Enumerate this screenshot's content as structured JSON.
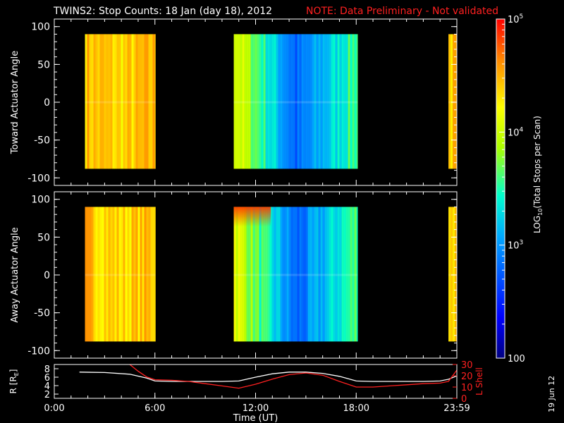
{
  "header": {
    "title": "TWINS2: Stop Counts: 18 Jan (day  18), 2012",
    "note": "NOTE: Data Preliminary - Not validated"
  },
  "side_date": "19 Jun 12",
  "colors": {
    "background": "#000000",
    "axes": "#ffffff",
    "note": "#ff2020",
    "r_line": "#ffffff",
    "lshell_line": "#ff2020"
  },
  "chart_data": [
    {
      "type": "heatmap",
      "ylabel": "Toward Actuator Angle",
      "ylim": [
        -110,
        110
      ],
      "yticks": [
        100,
        50,
        0,
        -50,
        -100
      ],
      "xlim_hours": [
        0,
        24
      ],
      "angle_range": [
        -88,
        90
      ],
      "blocks": [
        {
          "start_hour": 1.83,
          "end_hour": 6.03,
          "level_start": 0.82,
          "level_mid": 0.78,
          "level_end": 0.82
        },
        {
          "start_hour": 10.7,
          "end_hour": 18.08,
          "level_start": 0.72,
          "level_mid": 0.25,
          "level_end": 0.55
        },
        {
          "start_hour": 23.5,
          "end_hour": 24.0,
          "level_start": 0.8,
          "level_mid": 0.8,
          "level_end": 0.8
        }
      ]
    },
    {
      "type": "heatmap",
      "ylabel": "Away Actuator Angle",
      "ylim": [
        -110,
        110
      ],
      "yticks": [
        100,
        50,
        0,
        -50,
        -100
      ],
      "xlim_hours": [
        0,
        24
      ],
      "angle_range": [
        -88,
        90
      ],
      "blocks": [
        {
          "start_hour": 1.83,
          "end_hour": 6.03,
          "level_start": 0.82,
          "level_mid": 0.78,
          "level_end": 0.82
        },
        {
          "start_hour": 10.7,
          "end_hour": 18.08,
          "level_start": 0.72,
          "level_mid": 0.25,
          "level_end": 0.55
        },
        {
          "start_hour": 23.5,
          "end_hour": 24.0,
          "level_start": 0.8,
          "level_mid": 0.8,
          "level_end": 0.8
        }
      ]
    },
    {
      "type": "line",
      "xlabel": "Time (UT)",
      "xticks": [
        {
          "hour": 0,
          "label": "0:00"
        },
        {
          "hour": 6,
          "label": "6:00"
        },
        {
          "hour": 12,
          "label": "12:00"
        },
        {
          "hour": 18,
          "label": "18:00"
        },
        {
          "hour": 24,
          "label": "23:59"
        }
      ],
      "ylabel_left": "R [R",
      "ylabel_left_sub": "E",
      "ylabel_left_end": "]",
      "ylim_left": [
        1,
        9
      ],
      "yticks_left": [
        2,
        4,
        6,
        8
      ],
      "ylabel_right": "L Shell",
      "ylim_right": [
        0,
        30
      ],
      "yticks_right": [
        0,
        10,
        20,
        30
      ],
      "series": [
        {
          "axis": "left",
          "x": [
            1.5,
            3,
            4.5,
            5.5,
            6.0,
            7,
            8,
            9,
            10,
            11,
            12,
            13,
            14,
            15,
            16,
            17,
            18,
            19,
            20,
            21,
            22,
            23,
            23.5,
            24
          ],
          "y": [
            7.2,
            7.1,
            6.7,
            5.8,
            5.1,
            5.0,
            5.0,
            5.0,
            5.0,
            5.1,
            6.0,
            6.8,
            7.2,
            7.2,
            6.9,
            6.2,
            5.1,
            5.0,
            5.0,
            5.0,
            5.0,
            5.1,
            5.5,
            6.3
          ]
        },
        {
          "axis": "right",
          "x": [
            4.5,
            5.0,
            5.5,
            6.0,
            7,
            8,
            9,
            10,
            11,
            12,
            13,
            14,
            15,
            16,
            17,
            18,
            19,
            20,
            21,
            22,
            23,
            23.5,
            24
          ],
          "y": [
            30,
            24,
            19,
            16.5,
            16.0,
            15.0,
            13.0,
            11.0,
            9.0,
            12.5,
            17.0,
            21.0,
            22.5,
            20.5,
            15.0,
            10.0,
            10.0,
            11.0,
            12.0,
            13.0,
            13.5,
            15.0,
            25.0
          ]
        }
      ]
    },
    {
      "type": "colorbar",
      "ylabel": "LOG",
      "ylabel_sub": "10",
      "ylabel_end": "(Total Stops per Scan)",
      "log_range": [
        2,
        5
      ],
      "ticks": [
        {
          "log": 5,
          "base": "10",
          "exp": "5"
        },
        {
          "log": 4,
          "base": "10",
          "exp": "4"
        },
        {
          "log": 3,
          "base": "10",
          "exp": "3"
        },
        {
          "log": 2,
          "base": "100",
          "exp": ""
        }
      ]
    }
  ]
}
